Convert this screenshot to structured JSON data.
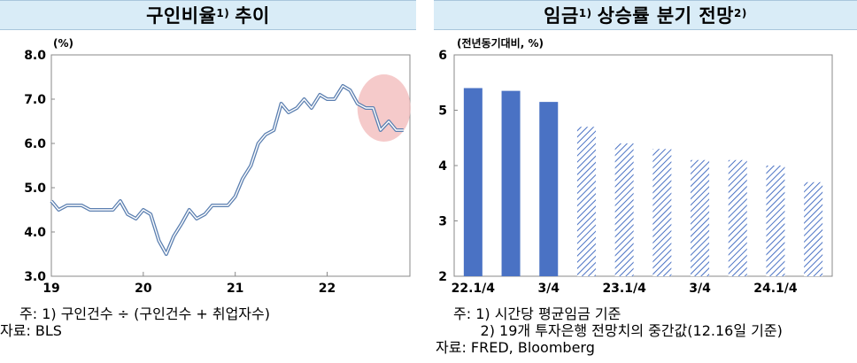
{
  "left_panel": {
    "title": "구인비율",
    "title_sup": "1)",
    "title_suffix": "추이",
    "notes": [
      "주: 1) 구인건수 ÷ (구인건수 + 취업자수)",
      "자료: BLS"
    ]
  },
  "right_panel": {
    "title": "임금",
    "title_sup": "1)",
    "title_suffix": "상승률 분기 전망",
    "title_sup2": "2)",
    "notes": [
      "주: 1) 시간당 평균임금 기준",
      "      2) 19개 투자은행 전망치의 중간값(12.16일 기준)",
      "자료: FRED, Bloomberg"
    ]
  },
  "chart_data": [
    {
      "type": "line",
      "unit_label": "(%)",
      "ylim": [
        3.0,
        8.0
      ],
      "y_ticks": [
        "3.0",
        "4.0",
        "5.0",
        "6.0",
        "7.0",
        "8.0"
      ],
      "x_ticks": [
        "19",
        "20",
        "21",
        "22"
      ],
      "x_tick_positions": [
        2019,
        2020,
        2021,
        2022
      ],
      "xlim": [
        2019,
        2022.9
      ],
      "series": [
        {
          "x": [
            2019.0,
            2019.08,
            2019.17,
            2019.25,
            2019.33,
            2019.42,
            2019.5,
            2019.58,
            2019.67,
            2019.75,
            2019.83,
            2019.92,
            2020.0,
            2020.08,
            2020.17,
            2020.25,
            2020.33,
            2020.42,
            2020.5,
            2020.58,
            2020.67,
            2020.75,
            2020.83,
            2020.92,
            2021.0,
            2021.08,
            2021.17,
            2021.25,
            2021.33,
            2021.42,
            2021.5,
            2021.58,
            2021.67,
            2021.75,
            2021.83,
            2021.92,
            2022.0,
            2022.08,
            2022.17,
            2022.25,
            2022.33,
            2022.42,
            2022.5,
            2022.58,
            2022.67,
            2022.75,
            2022.83
          ],
          "values": [
            4.7,
            4.5,
            4.6,
            4.6,
            4.6,
            4.5,
            4.5,
            4.5,
            4.5,
            4.7,
            4.4,
            4.3,
            4.5,
            4.4,
            3.8,
            3.5,
            3.9,
            4.2,
            4.5,
            4.3,
            4.4,
            4.6,
            4.6,
            4.6,
            4.8,
            5.2,
            5.5,
            6.0,
            6.2,
            6.3,
            6.9,
            6.7,
            6.8,
            7.0,
            6.8,
            7.1,
            7.0,
            7.0,
            7.3,
            7.2,
            6.9,
            6.8,
            6.8,
            6.3,
            6.5,
            6.3,
            6.3
          ]
        }
      ],
      "highlight": "end-of-series ellipse",
      "colors": {
        "line": "#5b7fb0",
        "highlight": "#f2b8b8"
      }
    },
    {
      "type": "bar",
      "unit_label": "(전년동기대비, %)",
      "ylim": [
        2,
        6
      ],
      "y_ticks": [
        "2",
        "3",
        "4",
        "5",
        "6"
      ],
      "categories": [
        "22.1/4",
        "",
        "3/4",
        "",
        "23.1/4",
        "",
        "3/4",
        "",
        "24.1/4",
        ""
      ],
      "values": [
        5.4,
        5.35,
        5.15,
        4.7,
        4.4,
        4.3,
        4.1,
        4.1,
        4.0,
        3.7
      ],
      "styles": [
        "solid",
        "solid",
        "solid",
        "hatched",
        "hatched",
        "hatched",
        "hatched",
        "hatched",
        "hatched",
        "hatched"
      ],
      "colors": {
        "solid": "#4a72c4",
        "hatched": "#4a72c4"
      }
    }
  ]
}
